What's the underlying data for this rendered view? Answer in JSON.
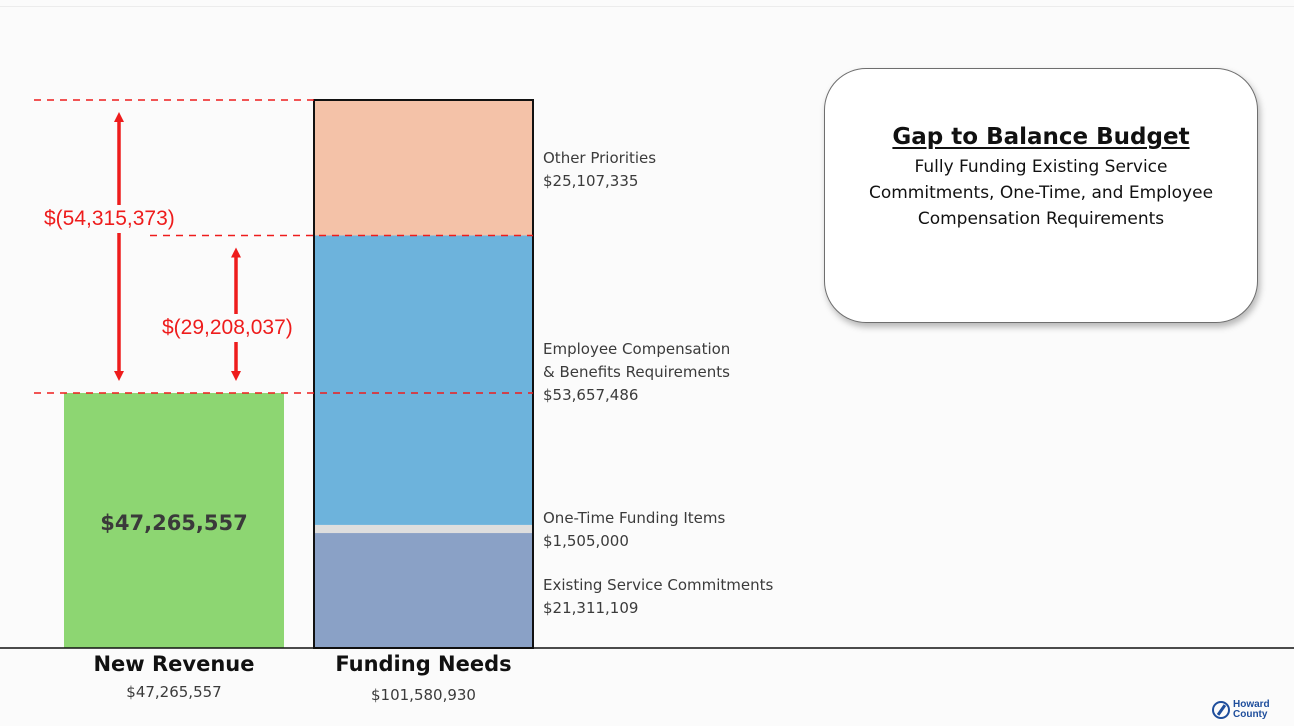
{
  "chart_data": {
    "type": "bar",
    "stacked": true,
    "categories": [
      "New Revenue",
      "Funding Needs"
    ],
    "category_totals": [
      "$47,265,557",
      "$101,580,930"
    ],
    "series": [
      {
        "name": "New Revenue",
        "category": "New Revenue",
        "value": 47265557,
        "label": "$47,265,557",
        "color": "#8dd672"
      },
      {
        "name": "Existing Service Commitments",
        "category": "Funding Needs",
        "value": 21311109,
        "label": "$21,311,109",
        "color": "#8aa1c6"
      },
      {
        "name": "One-Time Funding Items",
        "category": "Funding Needs",
        "value": 1505000,
        "label": "$1,505,000",
        "color": "#dedede"
      },
      {
        "name": "Employee Compensation & Benefits Requirements",
        "category": "Funding Needs",
        "value": 53657486,
        "label": "$53,657,486",
        "color": "#6db3dc"
      },
      {
        "name": "Other Priorities",
        "category": "Funding Needs",
        "value": 25107335,
        "label": "$25,107,335",
        "color": "#f4c2a8"
      }
    ],
    "segment_labels": {
      "other_priorities": [
        "Other Priorities",
        "$25,107,335"
      ],
      "employee_comp": [
        "Employee Compensation",
        "& Benefits Requirements",
        "$53,657,486"
      ],
      "one_time": [
        "One-Time Funding Items",
        "$1,505,000"
      ],
      "existing_service": [
        "Existing Service Commitments",
        "$21,311,109"
      ]
    },
    "gaps": [
      {
        "label": "$(54,315,373)",
        "from": 47265557,
        "to": 101580930
      },
      {
        "label": "$(29,208,037)",
        "from": 47265557,
        "to": 76473595
      }
    ],
    "ylim": [
      0,
      101580930
    ],
    "colors": {
      "gap": "#ee1c1c",
      "bar_outline": "#111111",
      "baseline": "#111111"
    }
  },
  "callout": {
    "title": "Gap to Balance Budget",
    "body": "Fully Funding Existing Service Commitments, One-Time, and Employee Compensation Requirements"
  },
  "logo": {
    "line1": "Howard",
    "line2": "County"
  }
}
